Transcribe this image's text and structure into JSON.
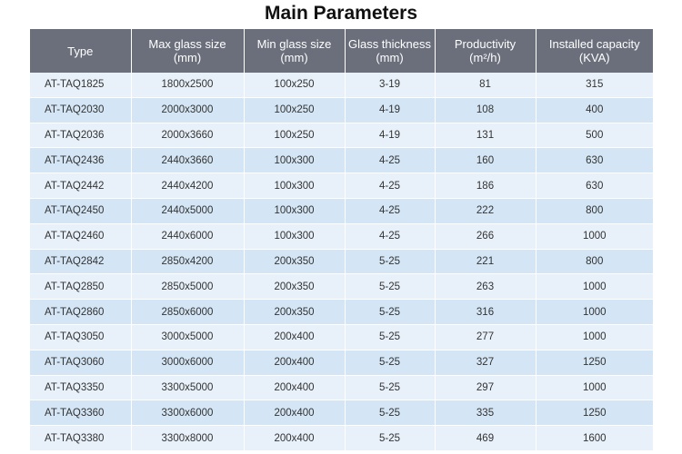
{
  "title": "Main Parameters",
  "columns": [
    {
      "line1": "Type",
      "line2": ""
    },
    {
      "line1": "Max glass size",
      "line2": "(mm)"
    },
    {
      "line1": "Min glass size",
      "line2": "(mm)"
    },
    {
      "line1": "Glass thickness",
      "line2": "(mm)"
    },
    {
      "line1": "Productivity",
      "line2": "(m²/h)"
    },
    {
      "line1": "Installed capacity",
      "line2": "(KVA)"
    }
  ],
  "rows": [
    [
      "AT-TAQ1825",
      "1800x2500",
      "100x250",
      "3-19",
      "81",
      "315"
    ],
    [
      "AT-TAQ2030",
      "2000x3000",
      "100x250",
      "4-19",
      "108",
      "400"
    ],
    [
      "AT-TAQ2036",
      "2000x3660",
      "100x250",
      "4-19",
      "131",
      "500"
    ],
    [
      "AT-TAQ2436",
      "2440x3660",
      "100x300",
      "4-25",
      "160",
      "630"
    ],
    [
      "AT-TAQ2442",
      "2440x4200",
      "100x300",
      "4-25",
      "186",
      "630"
    ],
    [
      "AT-TAQ2450",
      "2440x5000",
      "100x300",
      "4-25",
      "222",
      "800"
    ],
    [
      "AT-TAQ2460",
      "2440x6000",
      "100x300",
      "4-25",
      "266",
      "1000"
    ],
    [
      "AT-TAQ2842",
      "2850x4200",
      "200x350",
      "5-25",
      "221",
      "800"
    ],
    [
      "AT-TAQ2850",
      "2850x5000",
      "200x350",
      "5-25",
      "263",
      "1000"
    ],
    [
      "AT-TAQ2860",
      "2850x6000",
      "200x350",
      "5-25",
      "316",
      "1000"
    ],
    [
      "AT-TAQ3050",
      "3000x5000",
      "200x400",
      "5-25",
      "277",
      "1000"
    ],
    [
      "AT-TAQ3060",
      "3000x6000",
      "200x400",
      "5-25",
      "327",
      "1250"
    ],
    [
      "AT-TAQ3350",
      "3300x5000",
      "200x400",
      "5-25",
      "297",
      "1000"
    ],
    [
      "AT-TAQ3360",
      "3300x6000",
      "200x400",
      "5-25",
      "335",
      "1250"
    ],
    [
      "AT-TAQ3380",
      "3300x8000",
      "200x400",
      "5-25",
      "469",
      "1600"
    ]
  ],
  "colors": {
    "header_bg": "#6b6f7c",
    "row_light": "#e8f1fa",
    "row_dark": "#d4e6f5"
  }
}
